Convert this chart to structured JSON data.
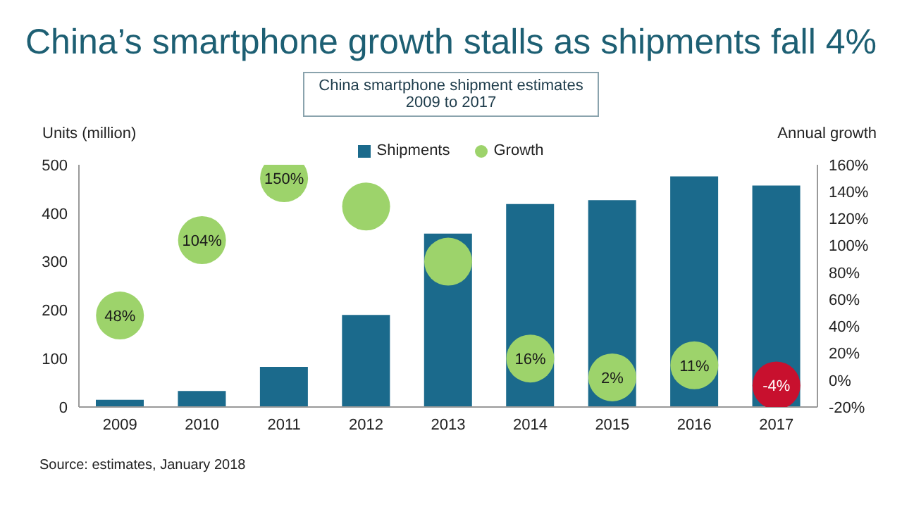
{
  "chart_data": {
    "type": "bar",
    "title": "China’s smartphone growth stalls as shipments fall 4%",
    "subtitle": "China smartphone shipment estimates 2009 to 2017",
    "xlabel": null,
    "ylabel": "Units (million)",
    "y2label": "Annual growth",
    "categories": [
      "2009",
      "2010",
      "2011",
      "2012",
      "2013",
      "2014",
      "2015",
      "2016",
      "2017"
    ],
    "series": [
      {
        "name": "Shipments",
        "color": "#1b6a8c",
        "values": [
          15,
          33,
          83,
          190,
          358,
          419,
          427,
          476,
          457
        ]
      },
      {
        "name": "Growth",
        "type": "scatter",
        "axis": "y2",
        "color": "#9dd36b",
        "colors": [
          "#9dd36b",
          "#9dd36b",
          "#9dd36b",
          "#9dd36b",
          "#9dd36b",
          "#9dd36b",
          "#9dd36b",
          "#9dd36b",
          "#c8102e"
        ],
        "values": [
          48,
          104,
          150,
          129,
          88,
          16,
          2,
          11,
          -4
        ],
        "value_labels": [
          "48%",
          "104%",
          "150%",
          null,
          null,
          "16%",
          "2%",
          "11%",
          "-4%"
        ]
      }
    ],
    "ylim": [
      0,
      500
    ],
    "yticks": [
      0,
      100,
      200,
      300,
      400,
      500
    ],
    "y2lim": [
      -20,
      160
    ],
    "y2ticks": [
      {
        "value": -20,
        "label": "-20%"
      },
      {
        "value": 0,
        "label": "0%"
      },
      {
        "value": 20,
        "label": "20%"
      },
      {
        "value": 40,
        "label": "40%"
      },
      {
        "value": 60,
        "label": "60%"
      },
      {
        "value": 80,
        "label": "80%"
      },
      {
        "value": 100,
        "label": "100%"
      },
      {
        "value": 120,
        "label": "120%"
      },
      {
        "value": 140,
        "label": "140%"
      },
      {
        "value": 160,
        "label": "160%"
      }
    ],
    "legend": "top",
    "grid": false,
    "marker": "circle",
    "annotations": [
      "Source: estimates, January 2018"
    ]
  }
}
